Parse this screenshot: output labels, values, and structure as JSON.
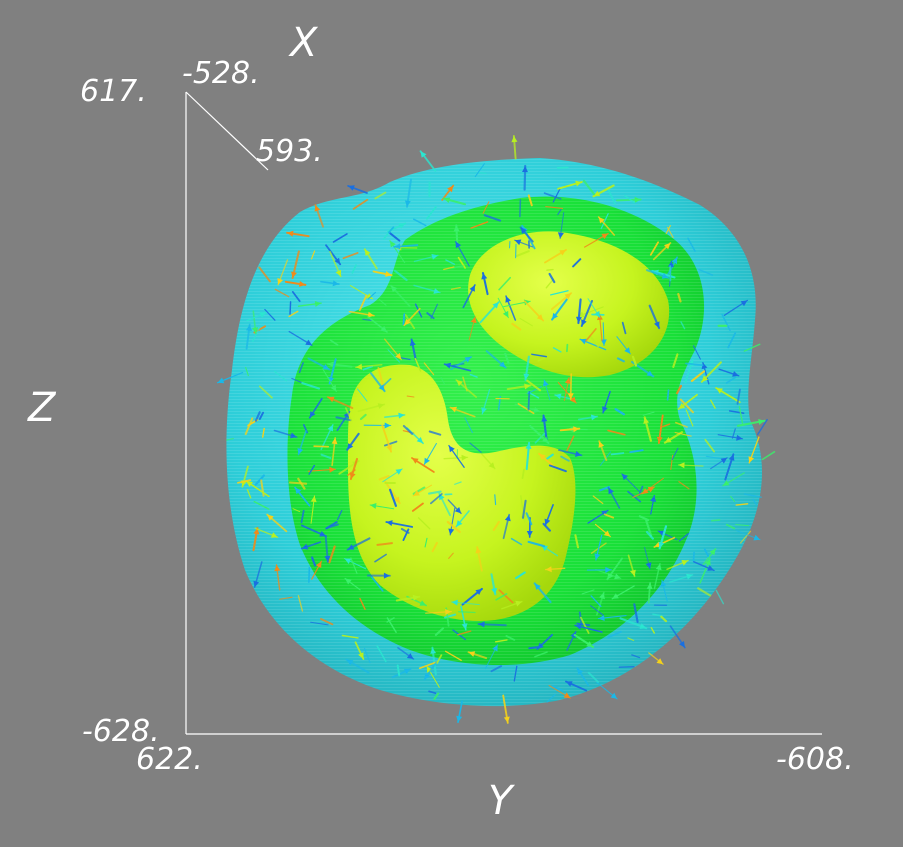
{
  "axes": {
    "x_title": "X",
    "y_title": "Y",
    "z_title": "Z",
    "x_tick_min": "-528.",
    "x_tick_max": "593.",
    "y_tick_min": "622.",
    "y_tick_max": "-608.",
    "z_tick_min": "-628.",
    "z_tick_max": "617."
  },
  "colors": {
    "background": "#808080",
    "outer_isosurface": "#2ad2dc",
    "middle_isosurface": "#19e33a",
    "inner_isosurface": "#c8f51e",
    "axis_line": "#ffffff"
  },
  "isosurfaces": [
    {
      "name": "outer",
      "color": "#2ad2dc",
      "opacity": 0.95
    },
    {
      "name": "middle",
      "color": "#19e33a",
      "opacity": 1.0
    },
    {
      "name": "inner",
      "color": "#c8f51e",
      "opacity": 1.0
    }
  ],
  "vector_field": {
    "glyph": "arrow",
    "color_scale": [
      "#1a6fe0",
      "#1ab8e8",
      "#2ae6d0",
      "#3af06a",
      "#b8f020",
      "#f5d21a",
      "#f08a1a"
    ]
  }
}
